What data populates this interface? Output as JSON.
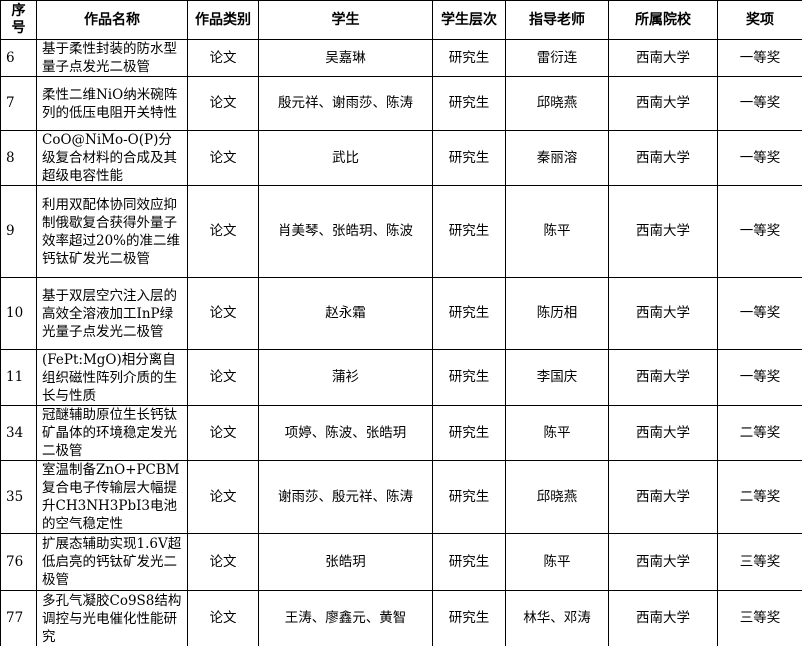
{
  "table": {
    "header": [
      "序号",
      "作品名称",
      "作品类别",
      "学生",
      "学生层次",
      "指导老师",
      "所属院校",
      "奖项"
    ],
    "rows": [
      [
        "6",
        "基于柔性封装的防水型量子点发光二极管",
        "论文",
        "吴嘉琳",
        "研究生",
        "雷衍连",
        "西南大学",
        "一等奖"
      ],
      [
        "7",
        "柔性二维NiO纳米碗阵列的低压电阻开关特性",
        "论文",
        "殷元祥、谢雨莎、陈涛",
        "研究生",
        "邱晓燕",
        "西南大学",
        "一等奖"
      ],
      [
        "8",
        "CoO@NiMo-O(P)分级复合材料的合成及其超级电容性能",
        "论文",
        "武比",
        "研究生",
        "秦丽溶",
        "西南大学",
        "一等奖"
      ],
      [
        "9",
        "利用双配体协同效应抑制俄歇复合获得外量子效率超过20%的准二维钙钛矿发光二极管",
        "论文",
        "肖美琴、张皓玥、陈波",
        "研究生",
        "陈平",
        "西南大学",
        "一等奖"
      ],
      [
        "10",
        "基于双层空穴注入层的高效全溶液加工InP绿光量子点发光二极管",
        "论文",
        "赵永霜",
        "研究生",
        "陈历相",
        "西南大学",
        "一等奖"
      ],
      [
        "11",
        "(FePt:MgO)相分离自组织磁性阵列介质的生长与性质",
        "论文",
        "蒲衫",
        "研究生",
        "李国庆",
        "西南大学",
        "一等奖"
      ],
      [
        "34",
        "冠醚辅助原位生长钙钛矿晶体的环境稳定发光二极管",
        "论文",
        "项婷、陈波、张皓玥",
        "研究生",
        "陈平",
        "西南大学",
        "二等奖"
      ],
      [
        "35",
        "室温制备ZnO+PCBM复合电子传输层大幅提升CH3NH3PbI3电池的空气稳定性",
        "论文",
        "谢雨莎、殷元祥、陈涛",
        "研究生",
        "邱晓燕",
        "西南大学",
        "二等奖"
      ],
      [
        "76",
        "扩展态辅助实现1.6V超低启亮的钙钛矿发光二极管",
        "论文",
        "张皓玥",
        "研究生",
        "陈平",
        "西南大学",
        "三等奖"
      ],
      [
        "77",
        "多孔气凝胶Co9S8结构调控与光电催化性能研究",
        "论文",
        "王涛、廖鑫元、黄智",
        "研究生",
        "林华、邓涛",
        "西南大学",
        "三等奖"
      ]
    ]
  }
}
